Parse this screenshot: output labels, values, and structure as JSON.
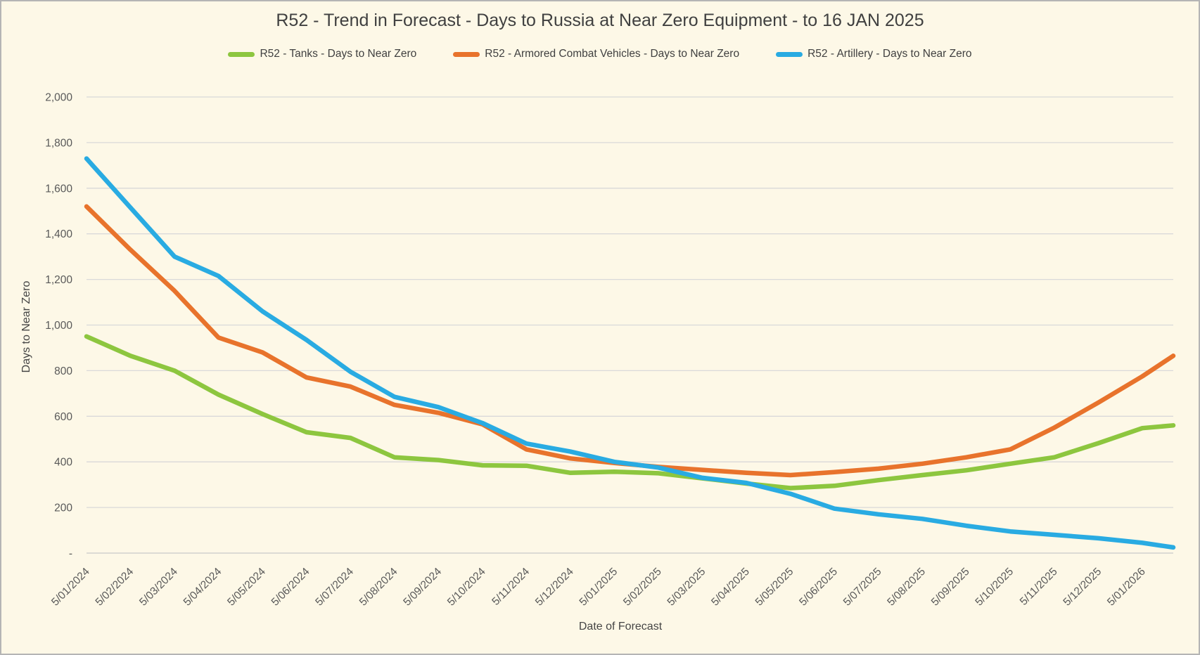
{
  "page": {
    "background": "#FDF8E7",
    "border_color": "#B5B5B5"
  },
  "colors": {
    "gridline": "#D9D9D9",
    "zero_axis_line": "#C8C8C8",
    "axis_text": "#595959",
    "title_text": "#404040"
  },
  "chart_data": {
    "type": "line",
    "title": "R52 - Trend in Forecast - Days to Russia at Near Zero Equipment - to 16 JAN 2025",
    "xlabel": "Date of Forecast",
    "ylabel": "Days to Near Zero",
    "ylim": [
      0,
      2000
    ],
    "ytick_step": 200,
    "ytick_labels": [
      "-",
      "200",
      "400",
      "600",
      "800",
      "1,000",
      "1,200",
      "1,400",
      "1,600",
      "1,800",
      "2,000"
    ],
    "grid": true,
    "legend_position": "top",
    "x_tick_rotation_deg": -45,
    "categories": [
      "5/01/2024",
      "5/02/2024",
      "5/03/2024",
      "5/04/2024",
      "5/05/2024",
      "5/06/2024",
      "5/07/2024",
      "5/08/2024",
      "5/09/2024",
      "5/10/2024",
      "5/11/2024",
      "5/12/2024",
      "5/01/2025",
      "5/02/2025",
      "5/03/2025",
      "5/04/2025",
      "5/05/2025",
      "5/06/2025",
      "5/07/2025",
      "5/08/2025",
      "5/09/2025",
      "5/10/2025",
      "5/11/2025",
      "5/12/2025",
      "5/01/2026"
    ],
    "note": "Each series has 26 points: one per monthly tick plus a final point where the lines extend slightly past the 5/01/2026 tick to the right edge of the plot.",
    "series": [
      {
        "name": "R52 - Tanks - Days to Near Zero",
        "color": "#8DC63F",
        "values": [
          950,
          865,
          800,
          695,
          610,
          530,
          505,
          420,
          408,
          385,
          383,
          352,
          357,
          350,
          328,
          305,
          285,
          295,
          320,
          342,
          363,
          392,
          420,
          482,
          548,
          560
        ]
      },
      {
        "name": "R52 - Armored Combat Vehicles - Days to Near Zero",
        "color": "#E8732C",
        "values": [
          1520,
          1330,
          1150,
          945,
          880,
          770,
          730,
          650,
          615,
          565,
          455,
          415,
          395,
          378,
          365,
          352,
          342,
          355,
          370,
          392,
          420,
          455,
          550,
          660,
          775,
          865
        ]
      },
      {
        "name": "R52 - Artillery - Days to Near Zero",
        "color": "#29ABE2",
        "values": [
          1730,
          1515,
          1300,
          1215,
          1060,
          935,
          795,
          685,
          640,
          570,
          480,
          445,
          400,
          375,
          330,
          308,
          260,
          195,
          170,
          150,
          120,
          95,
          80,
          65,
          45,
          25
        ]
      }
    ]
  }
}
